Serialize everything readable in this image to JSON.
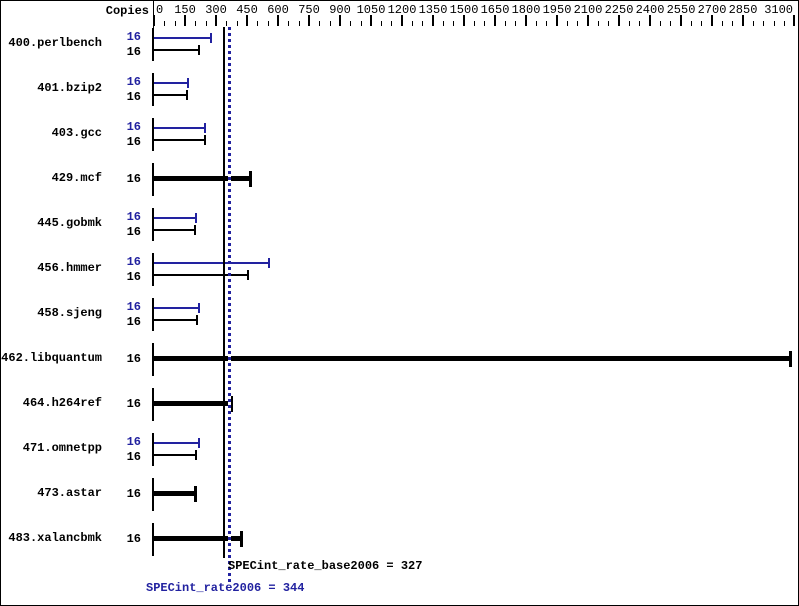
{
  "header": {
    "copies_label": "Copies"
  },
  "colors": {
    "peak_blue": "#2222a0",
    "base_black": "#000000",
    "background": "#ffffff"
  },
  "chart_data": {
    "type": "bar",
    "orientation": "horizontal",
    "title": "",
    "xlabel": "",
    "ylabel": "",
    "axis": {
      "position": "top",
      "min": 0,
      "max": 3100,
      "major_tick_interval": 150,
      "minor_tick_interval": 50,
      "tick_labels": [
        "0",
        "150",
        "300",
        "450",
        "600",
        "750",
        "900",
        "1050",
        "1200",
        "1350",
        "1500",
        "1650",
        "1800",
        "1950",
        "2100",
        "2250",
        "2400",
        "2550",
        "2700",
        "2850",
        "3100"
      ]
    },
    "series_legend": {
      "peak_color_meaning": "peak (SPECint_rate2006)",
      "base_color_meaning": "base (SPECint_rate_base2006)"
    },
    "benchmarks": [
      {
        "name": "400.perlbench",
        "copies_peak": 16,
        "copies_base": 16,
        "peak": 274,
        "base": 219,
        "single": false
      },
      {
        "name": "401.bzip2",
        "copies_peak": 16,
        "copies_base": 16,
        "peak": 166,
        "base": 160,
        "single": false
      },
      {
        "name": "403.gcc",
        "copies_peak": 16,
        "copies_base": 16,
        "peak": 249,
        "base": 249,
        "single": false
      },
      {
        "name": "429.mcf",
        "copies_base": 16,
        "base": 465,
        "single": true
      },
      {
        "name": "445.gobmk",
        "copies_peak": 16,
        "copies_base": 16,
        "peak": 204,
        "base": 200,
        "single": false
      },
      {
        "name": "456.hmmer",
        "copies_peak": 16,
        "copies_base": 16,
        "peak": 559,
        "base": 457,
        "single": false
      },
      {
        "name": "458.sjeng",
        "copies_peak": 16,
        "copies_base": 16,
        "peak": 220,
        "base": 208,
        "single": false
      },
      {
        "name": "462.libquantum",
        "copies_base": 16,
        "base": 3080,
        "single": true
      },
      {
        "name": "464.h264ref",
        "copies_base": 16,
        "base": 371,
        "single": true
      },
      {
        "name": "471.omnetpp",
        "copies_peak": 16,
        "copies_base": 16,
        "peak": 217,
        "base": 205,
        "single": false
      },
      {
        "name": "473.astar",
        "copies_base": 16,
        "base": 198,
        "single": true
      },
      {
        "name": "483.xalancbmk",
        "copies_base": 16,
        "base": 421,
        "single": true
      }
    ],
    "summary": {
      "base": {
        "label": "SPECint_rate_base2006",
        "value": 327,
        "text": "SPECint_rate_base2006 = 327"
      },
      "peak": {
        "label": "SPECint_rate2006",
        "value": 344,
        "text": "SPECint_rate2006 = 344"
      }
    }
  }
}
